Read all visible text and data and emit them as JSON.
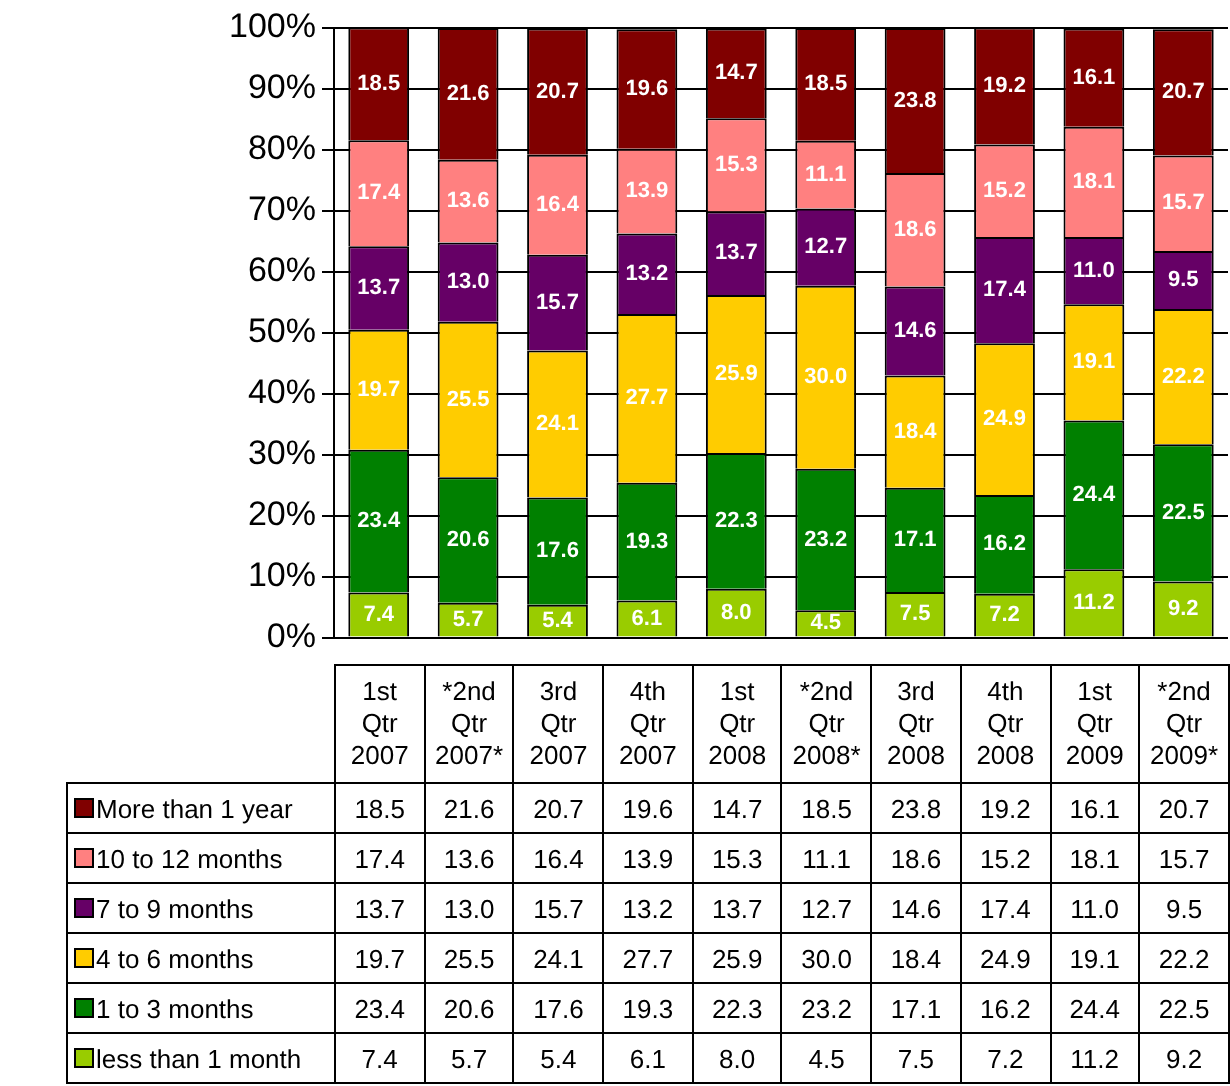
{
  "chart_data": {
    "type": "bar",
    "stacked": true,
    "categories": [
      "1st Qtr 2007",
      "*2nd Qtr 2007*",
      "3rd Qtr 2007",
      "4th Qtr 2007",
      "1st Qtr 2008",
      "*2nd Qtr 2008*",
      "3rd Qtr 2008",
      "4th Qtr 2008",
      "1st Qtr 2009",
      "*2nd Qtr 2009*"
    ],
    "series": [
      {
        "name": "less than 1 month",
        "color": "#99cc00",
        "values": [
          7.4,
          5.7,
          5.4,
          6.1,
          8.0,
          4.5,
          7.5,
          7.2,
          11.2,
          9.2
        ],
        "value_labels": [
          "7.4",
          "5.7",
          "5.4",
          "6.1",
          "8.0",
          "4.5",
          "7.5",
          "7.2",
          "11.2",
          "9.2"
        ]
      },
      {
        "name": "1 to 3 months",
        "color": "#008000",
        "values": [
          23.4,
          20.6,
          17.6,
          19.3,
          22.3,
          23.2,
          17.1,
          16.2,
          24.4,
          22.5
        ],
        "value_labels": [
          "23.4",
          "20.6",
          "17.6",
          "19.3",
          "22.3",
          "23.2",
          "17.1",
          "16.2",
          "24.4",
          "22.5"
        ]
      },
      {
        "name": "4 to 6 months",
        "color": "#ffcc00",
        "values": [
          19.7,
          25.5,
          24.1,
          27.7,
          25.9,
          30.0,
          18.4,
          24.9,
          19.1,
          22.2
        ],
        "value_labels": [
          "19.7",
          "25.5",
          "24.1",
          "27.7",
          "25.9",
          "30.0",
          "18.4",
          "24.9",
          "19.1",
          "22.2"
        ]
      },
      {
        "name": "7 to 9 months",
        "color": "#660066",
        "values": [
          13.7,
          13.0,
          15.7,
          13.2,
          13.7,
          12.7,
          14.6,
          17.4,
          11.0,
          9.5
        ],
        "value_labels": [
          "13.7",
          "13.0",
          "15.7",
          "13.2",
          "13.7",
          "12.7",
          "14.6",
          "17.4",
          "11.0",
          "9.5"
        ]
      },
      {
        "name": "10 to 12 months",
        "color": "#ff8080",
        "values": [
          17.4,
          13.6,
          16.4,
          13.9,
          15.3,
          11.1,
          18.6,
          15.2,
          18.1,
          15.7
        ],
        "value_labels": [
          "17.4",
          "13.6",
          "16.4",
          "13.9",
          "15.3",
          "11.1",
          "18.6",
          "15.2",
          "18.1",
          "15.7"
        ]
      },
      {
        "name": "More than 1 year",
        "color": "#800000",
        "values": [
          18.5,
          21.6,
          20.7,
          19.6,
          14.7,
          18.5,
          23.8,
          19.2,
          16.1,
          20.7
        ],
        "value_labels": [
          "18.5",
          "21.6",
          "20.7",
          "19.6",
          "14.7",
          "18.5",
          "23.8",
          "19.2",
          "16.1",
          "20.7"
        ]
      }
    ],
    "ylim": [
      0,
      100
    ],
    "yticks": [
      {
        "value": 0,
        "label": "0%"
      },
      {
        "value": 10,
        "label": "10%"
      },
      {
        "value": 20,
        "label": "20%"
      },
      {
        "value": 30,
        "label": "30%"
      },
      {
        "value": 40,
        "label": "40%"
      },
      {
        "value": 50,
        "label": "50%"
      },
      {
        "value": 60,
        "label": "60%"
      },
      {
        "value": 70,
        "label": "70%"
      },
      {
        "value": 80,
        "label": "80%"
      },
      {
        "value": 90,
        "label": "90%"
      },
      {
        "value": 100,
        "label": "100%"
      }
    ],
    "grid": "y",
    "legend": "bottom"
  }
}
